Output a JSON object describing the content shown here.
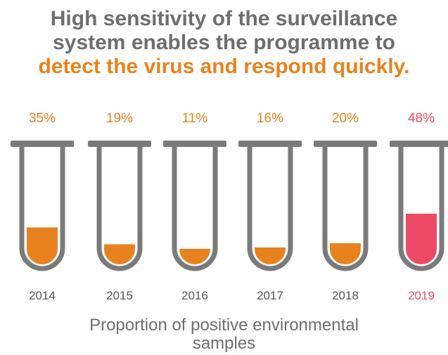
{
  "headline": {
    "line1": "High sensitivity of the surveillance",
    "line2": "system enables the programme to",
    "line3": "detect the virus and respond quickly."
  },
  "colors": {
    "title_grey": "#6e6e6e",
    "accent_orange": "#e8821e",
    "highlight_pink": "#ee4a68",
    "tube_grey": "#7a7a7a"
  },
  "chart_data": {
    "type": "bar",
    "categories": [
      "2014",
      "2015",
      "2016",
      "2017",
      "2018",
      "2019"
    ],
    "values": [
      35,
      19,
      11,
      16,
      20,
      48
    ],
    "value_labels": [
      "35%",
      "19%",
      "11%",
      "16%",
      "20%",
      "48%"
    ],
    "highlight_category": "2019",
    "xlabel": "Proportion of positive environmental samples",
    "ylabel": "",
    "ylim": [
      0,
      100
    ]
  },
  "caption": {
    "line1": "Proportion of positive environmental",
    "line2": "samples"
  }
}
